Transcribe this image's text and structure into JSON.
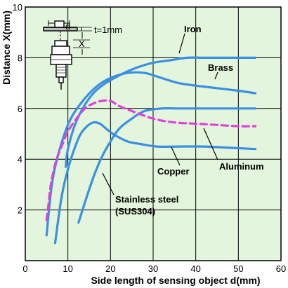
{
  "chart_data": {
    "type": "line",
    "title": "",
    "xlabel": "Side length of sensing object d(mm)",
    "ylabel": "Distance X(mm)",
    "xlim": [
      0,
      60
    ],
    "ylim": [
      0,
      10
    ],
    "xticks": [
      "0",
      "10",
      "20",
      "30",
      "40",
      "50",
      "60"
    ],
    "yticks": [
      "2",
      "4",
      "6",
      "8",
      "10"
    ],
    "grid": true,
    "plot_background": "#e3f5dd",
    "series_color": "#3a8fe0",
    "dashed_color": "#e040d8",
    "series": [
      {
        "name": "Iron",
        "style": "solid",
        "points": [
          [
            9.5,
            3.7
          ],
          [
            10,
            4.4
          ],
          [
            12,
            5.5
          ],
          [
            15,
            6.4
          ],
          [
            18,
            6.9
          ],
          [
            22,
            7.3
          ],
          [
            26,
            7.6
          ],
          [
            30,
            7.8
          ],
          [
            34,
            7.9
          ],
          [
            38,
            8.0
          ],
          [
            42,
            8.0
          ],
          [
            46,
            8.0
          ],
          [
            50,
            8.0
          ],
          [
            54,
            8.0
          ]
        ]
      },
      {
        "name": "Brass",
        "style": "solid",
        "points": [
          [
            5,
            1.0
          ],
          [
            6,
            2.7
          ],
          [
            7,
            3.7
          ],
          [
            9,
            4.9
          ],
          [
            11,
            5.7
          ],
          [
            14,
            6.4
          ],
          [
            17,
            6.9
          ],
          [
            20,
            7.2
          ],
          [
            24,
            7.4
          ],
          [
            28,
            7.4
          ],
          [
            32,
            7.2
          ],
          [
            36,
            7.0
          ],
          [
            40,
            6.9
          ],
          [
            45,
            6.8
          ],
          [
            50,
            6.7
          ],
          [
            54,
            6.6
          ]
        ]
      },
      {
        "name": "Copper",
        "style": "solid",
        "points": [
          [
            12.5,
            1.5
          ],
          [
            14,
            2.3
          ],
          [
            16,
            3.3
          ],
          [
            18,
            4.1
          ],
          [
            20,
            4.7
          ],
          [
            22,
            5.2
          ],
          [
            25,
            5.6
          ],
          [
            28,
            5.9
          ],
          [
            32,
            6.0
          ],
          [
            36,
            6.0
          ],
          [
            40,
            6.0
          ],
          [
            44,
            6.0
          ],
          [
            48,
            6.0
          ],
          [
            54,
            6.0
          ]
        ]
      },
      {
        "name": "Aluminum",
        "style": "solid",
        "points": [
          [
            7,
            0.7
          ],
          [
            8.5,
            2.5
          ],
          [
            10,
            3.6
          ],
          [
            11.5,
            4.4
          ],
          [
            13,
            5.0
          ],
          [
            14.5,
            5.3
          ],
          [
            16,
            5.45
          ],
          [
            17.5,
            5.4
          ],
          [
            19,
            5.2
          ],
          [
            21,
            4.95
          ],
          [
            24,
            4.7
          ],
          [
            27,
            4.6
          ],
          [
            31,
            4.5
          ],
          [
            36,
            4.5
          ],
          [
            42,
            4.5
          ],
          [
            48,
            4.45
          ],
          [
            54,
            4.4
          ]
        ]
      },
      {
        "name": "Stainless steel (SUS304)",
        "style": "dashed",
        "points": [
          [
            5,
            1.6
          ],
          [
            5.5,
            2.3
          ],
          [
            6,
            3.0
          ],
          [
            7,
            3.8
          ],
          [
            8,
            4.3
          ],
          [
            9,
            4.7
          ],
          [
            10,
            5.1
          ],
          [
            12,
            5.6
          ],
          [
            14,
            6.0
          ],
          [
            16,
            6.2
          ],
          [
            18,
            6.3
          ],
          [
            20,
            6.3
          ],
          [
            22,
            6.1
          ],
          [
            25,
            5.9
          ],
          [
            30,
            5.6
          ],
          [
            35,
            5.45
          ],
          [
            40,
            5.4
          ],
          [
            45,
            5.35
          ],
          [
            50,
            5.3
          ],
          [
            54,
            5.3
          ]
        ]
      }
    ],
    "annotations": {
      "iron": "Iron",
      "brass": "Brass",
      "copper": "Copper",
      "aluminum": "Aluminum",
      "stainless_line1": "Stainless steel",
      "stainless_line2": "(SUS304)",
      "sensor_d": "d",
      "sensor_x": "X",
      "sensor_t": "t=1mm"
    }
  }
}
